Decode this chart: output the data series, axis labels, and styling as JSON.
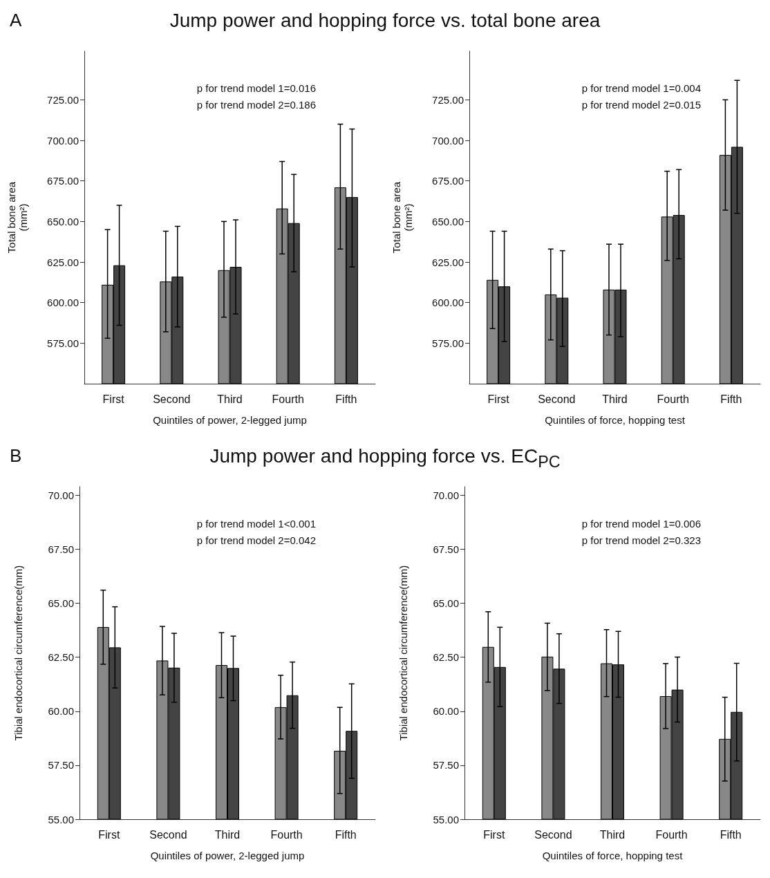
{
  "chart_data": [
    {
      "type": "bar",
      "title": "Jump power and hopping force vs. total bone area",
      "annotations": [
        "A",
        "p for trend model 1=0.016",
        "p for trend model 2=0.186"
      ],
      "xlabel": "Quintiles of power, 2-legged jump",
      "ylabel": "Total bone area\n(mm²)",
      "categories": [
        "First",
        "Second",
        "Third",
        "Fourth",
        "Fifth"
      ],
      "ylim": [
        550,
        755
      ],
      "yticks": [
        {
          "value": 575,
          "label": "575.00"
        },
        {
          "value": 600,
          "label": "600.00"
        },
        {
          "value": 625,
          "label": "625.00"
        },
        {
          "value": 650,
          "label": "650.00"
        },
        {
          "value": 675,
          "label": "675.00"
        },
        {
          "value": 700,
          "label": "700.00"
        },
        {
          "value": 725,
          "label": "725.00"
        }
      ],
      "grid": false,
      "series": [
        {
          "color": "#888888",
          "values": [
            611,
            613,
            620,
            658,
            671
          ],
          "errors": [
            [
              578,
              645
            ],
            [
              582,
              644
            ],
            [
              591,
              650
            ],
            [
              630,
              687
            ],
            [
              633,
              710
            ]
          ]
        },
        {
          "color": "#444444",
          "values": [
            623,
            616,
            622,
            649,
            665
          ],
          "errors": [
            [
              586,
              660
            ],
            [
              585,
              647
            ],
            [
              593,
              651
            ],
            [
              619,
              679
            ],
            [
              622,
              707
            ]
          ]
        }
      ]
    },
    {
      "type": "bar",
      "xlabel": "Quintiles of force, hopping test",
      "ylabel": "Total bone area\n(mm²)",
      "annotations": [
        "p for trend model 1=0.004",
        "p for trend model 2=0.015"
      ],
      "categories": [
        "First",
        "Second",
        "Third",
        "Fourth",
        "Fifth"
      ],
      "ylim": [
        550,
        755
      ],
      "yticks": [
        {
          "value": 575,
          "label": "575.00"
        },
        {
          "value": 600,
          "label": "600.00"
        },
        {
          "value": 625,
          "label": "625.00"
        },
        {
          "value": 650,
          "label": "650.00"
        },
        {
          "value": 675,
          "label": "675.00"
        },
        {
          "value": 700,
          "label": "700.00"
        },
        {
          "value": 725,
          "label": "725.00"
        }
      ],
      "grid": false,
      "series": [
        {
          "color": "#888888",
          "values": [
            614,
            605,
            608,
            653,
            691
          ],
          "errors": [
            [
              584,
              644
            ],
            [
              577,
              633
            ],
            [
              580,
              636
            ],
            [
              626,
              681
            ],
            [
              657,
              725
            ]
          ]
        },
        {
          "color": "#444444",
          "values": [
            610,
            603,
            608,
            654,
            696
          ],
          "errors": [
            [
              576,
              644
            ],
            [
              573,
              632
            ],
            [
              579,
              636
            ],
            [
              627,
              682
            ],
            [
              655,
              737
            ]
          ]
        }
      ]
    },
    {
      "type": "bar",
      "title": "Jump power and hopping force vs. EC$_{PC}$",
      "annotations": [
        "B",
        "p for trend model 1<0.001",
        "p for trend model 2=0.042"
      ],
      "xlabel": "Quintiles of power, 2-legged jump",
      "ylabel": "Tibial endocortical circumference(mm)",
      "categories": [
        "First",
        "Second",
        "Third",
        "Fourth",
        "Fifth"
      ],
      "ylim": [
        55,
        70.4
      ],
      "yticks": [
        {
          "value": 55,
          "label": "55.00"
        },
        {
          "value": 57.5,
          "label": "57.50"
        },
        {
          "value": 60,
          "label": "60.00"
        },
        {
          "value": 62.5,
          "label": "62.50"
        },
        {
          "value": 65,
          "label": "65.00"
        },
        {
          "value": 67.5,
          "label": "67.50"
        },
        {
          "value": 70,
          "label": "70.00"
        }
      ],
      "grid": false,
      "series": [
        {
          "color": "#888888",
          "values": [
            63.9,
            62.35,
            62.14,
            60.19,
            58.17
          ],
          "errors": [
            [
              62.18,
              65.61
            ],
            [
              60.76,
              63.93
            ],
            [
              60.63,
              63.64
            ],
            [
              58.72,
              61.67
            ],
            [
              56.19,
              60.18
            ]
          ]
        },
        {
          "color": "#444444",
          "values": [
            62.96,
            62.02,
            62.0,
            60.74,
            59.09
          ],
          "errors": [
            [
              61.08,
              64.84
            ],
            [
              60.42,
              63.61
            ],
            [
              60.49,
              63.48
            ],
            [
              59.21,
              62.28
            ],
            [
              56.9,
              61.27
            ]
          ]
        }
      ]
    },
    {
      "type": "bar",
      "xlabel": "Quintiles of force, hopping test",
      "ylabel": "Tibial endocortical circumference(mm)",
      "annotations": [
        "p for trend model 1=0.006",
        "p for trend model 2=0.323"
      ],
      "categories": [
        "First",
        "Second",
        "Third",
        "Fourth",
        "Fifth"
      ],
      "ylim": [
        55,
        70.4
      ],
      "yticks": [
        {
          "value": 55,
          "label": "55.00"
        },
        {
          "value": 57.5,
          "label": "57.50"
        },
        {
          "value": 60,
          "label": "60.00"
        },
        {
          "value": 62.5,
          "label": "62.50"
        },
        {
          "value": 65,
          "label": "65.00"
        },
        {
          "value": 67.5,
          "label": "67.50"
        },
        {
          "value": 70,
          "label": "70.00"
        }
      ],
      "grid": false,
      "series": [
        {
          "color": "#888888",
          "values": [
            62.98,
            62.53,
            62.22,
            60.7,
            58.72
          ],
          "errors": [
            [
              61.35,
              64.61
            ],
            [
              60.96,
              64.08
            ],
            [
              60.68,
              63.78
            ],
            [
              59.2,
              62.21
            ],
            [
              56.77,
              60.65
            ]
          ]
        },
        {
          "color": "#444444",
          "values": [
            62.05,
            61.97,
            62.17,
            61.0,
            59.97
          ],
          "errors": [
            [
              60.22,
              63.89
            ],
            [
              60.36,
              63.59
            ],
            [
              60.65,
              63.7
            ],
            [
              59.5,
              62.51
            ],
            [
              57.7,
              62.22
            ]
          ]
        }
      ]
    }
  ]
}
